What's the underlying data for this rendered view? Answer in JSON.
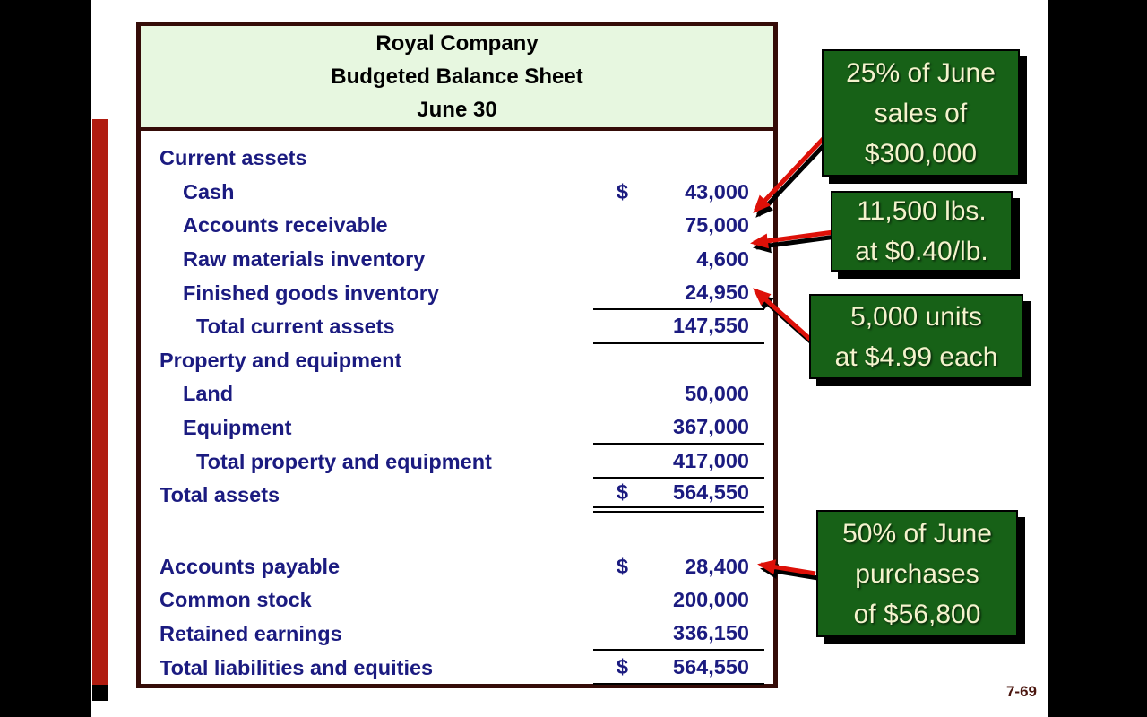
{
  "page": {
    "footer_page_number": "7-69"
  },
  "colors": {
    "letterbox": "#000000",
    "slide_background": "#ffffff",
    "accent_bar_red": "#b01c10",
    "table_border_maroon": "#350c08",
    "table_header_green": "#e7f7e0",
    "table_text_navy": "#1b1b80",
    "callout_green": "#176117",
    "callout_text_cream": "#f4f3cd",
    "arrow_red": "#dd1008",
    "footer_maroon": "#4a150e"
  },
  "balance_sheet": {
    "title_lines": [
      "Royal Company",
      "Budgeted Balance Sheet",
      "June 30"
    ],
    "rows": [
      {
        "label": "Current assets",
        "indent": 0
      },
      {
        "label": "Cash",
        "indent": 1,
        "dollar": "$",
        "value": "43,000"
      },
      {
        "label": "Accounts receivable",
        "indent": 1,
        "value": "75,000"
      },
      {
        "label": "Raw materials inventory",
        "indent": 1,
        "value": "4,600"
      },
      {
        "label": "Finished goods inventory",
        "indent": 1,
        "value": "24,950",
        "underline": "single"
      },
      {
        "label": "Total current assets",
        "indent": 2,
        "value": "147,550",
        "underline": "single"
      },
      {
        "label": "Property and equipment",
        "indent": 0
      },
      {
        "label": "Land",
        "indent": 1,
        "value": "50,000"
      },
      {
        "label": "Equipment",
        "indent": 1,
        "value": "367,000",
        "underline": "single"
      },
      {
        "label": "Total property and equipment",
        "indent": 2,
        "value": "417,000",
        "underline": "single"
      },
      {
        "label": "Total assets",
        "indent": 0,
        "dollar": "$",
        "value": "564,550",
        "underline": "double"
      },
      {
        "label": "",
        "indent": 0,
        "spacer": true
      },
      {
        "label": "Accounts payable",
        "indent": 0,
        "dollar": "$",
        "value": "28,400"
      },
      {
        "label": "Common stock",
        "indent": 0,
        "value": "200,000"
      },
      {
        "label": "Retained earnings",
        "indent": 0,
        "value": "336,150",
        "underline": "single"
      },
      {
        "label": "Total liabilities and equities",
        "indent": 0,
        "dollar": "$",
        "value": "564,550",
        "underline": "single"
      }
    ]
  },
  "callouts": [
    {
      "id": "callout-accounts-receivable",
      "lines": [
        "25% of June",
        "sales of",
        "$300,000"
      ]
    },
    {
      "id": "callout-raw-materials",
      "lines": [
        "11,500 lbs.",
        "at $0.40/lb."
      ]
    },
    {
      "id": "callout-finished-goods",
      "lines": [
        "5,000 units",
        "at $4.99 each"
      ]
    },
    {
      "id": "callout-accounts-payable",
      "lines": [
        "50% of June",
        "purchases",
        "of $56,800"
      ]
    }
  ]
}
